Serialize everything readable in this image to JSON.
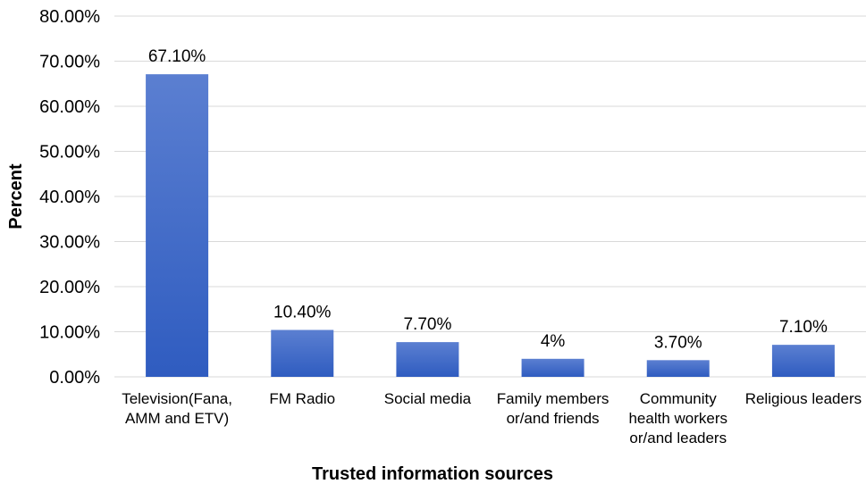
{
  "chart_data": {
    "type": "bar",
    "categories": [
      "Television(Fana, AMM and ETV)",
      "FM Radio",
      "Social media",
      "Family members or/and friends",
      "Community health workers or/and leaders",
      "Religious leaders"
    ],
    "category_lines": [
      [
        "Television(Fana,",
        "AMM and ETV)"
      ],
      [
        "FM Radio"
      ],
      [
        "Social media"
      ],
      [
        "Family members",
        "or/and friends"
      ],
      [
        "Community",
        "health workers",
        "or/and leaders"
      ],
      [
        "Religious leaders"
      ]
    ],
    "values": [
      67.1,
      10.4,
      7.7,
      4,
      3.7,
      7.1
    ],
    "data_labels": [
      "67.10%",
      "10.40%",
      "7.70%",
      "4%",
      "3.70%",
      "7.10%"
    ],
    "ylim": [
      0,
      80
    ],
    "yticks": [
      0,
      10,
      20,
      30,
      40,
      50,
      60,
      70,
      80
    ],
    "ytick_labels": [
      "0.00%",
      "10.00%",
      "20.00%",
      "30.00%",
      "40.00%",
      "50.00%",
      "60.00%",
      "70.00%",
      "80.00%"
    ],
    "xlabel": "Trusted information sources",
    "ylabel": "Percent",
    "grid": true,
    "legend": "none",
    "colors": {
      "bar_top": "#5b7fd1",
      "bar_bottom": "#2f5cc0",
      "grid": "#d9d9d9"
    }
  }
}
